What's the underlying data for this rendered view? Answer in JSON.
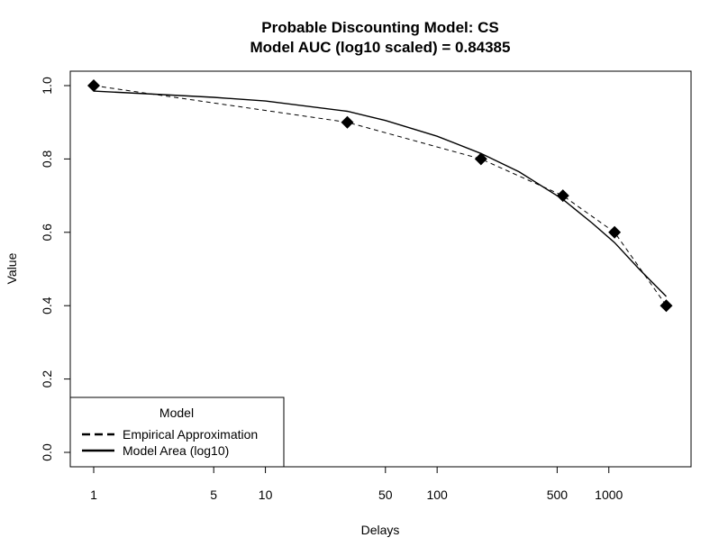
{
  "chart_data": {
    "type": "line",
    "title": "Probable Discounting Model: CS",
    "subtitle": "Model AUC (log10 scaled) = 0.84385",
    "xlabel": "Delays",
    "ylabel": "Value",
    "x_scale": "log10",
    "xlim": [
      1,
      2200
    ],
    "ylim": [
      0,
      1
    ],
    "x_ticks": [
      1,
      5,
      10,
      50,
      100,
      500,
      1000
    ],
    "x_tick_labels": [
      "1",
      "5",
      "10",
      "50",
      "100",
      "500",
      "1000"
    ],
    "y_ticks": [
      0.0,
      0.2,
      0.4,
      0.6,
      0.8,
      1.0
    ],
    "y_tick_labels": [
      "0.0",
      "0.2",
      "0.4",
      "0.6",
      "0.8",
      "1.0"
    ],
    "points": {
      "x": [
        1,
        30,
        180,
        540,
        1080,
        2160
      ],
      "y": [
        1.0,
        0.9,
        0.8,
        0.7,
        0.6,
        0.4
      ]
    },
    "series": [
      {
        "name": "Empirical Approximation",
        "style": "dashed",
        "x": [
          1,
          30,
          180,
          540,
          1080,
          2160
        ],
        "y": [
          1.0,
          0.9,
          0.8,
          0.7,
          0.6,
          0.4
        ]
      },
      {
        "name": "Model Area (log10)",
        "style": "solid",
        "x": [
          1,
          2,
          5,
          10,
          30,
          50,
          100,
          180,
          300,
          540,
          800,
          1080,
          1500,
          2160
        ],
        "y": [
          0.985,
          0.978,
          0.968,
          0.958,
          0.93,
          0.905,
          0.862,
          0.815,
          0.765,
          0.69,
          0.625,
          0.572,
          0.5,
          0.425
        ]
      }
    ],
    "legend": {
      "title": "Model",
      "position": "bottom-left",
      "entries": [
        "Empirical Approximation",
        "Model Area (log10)"
      ]
    },
    "grid": false
  }
}
